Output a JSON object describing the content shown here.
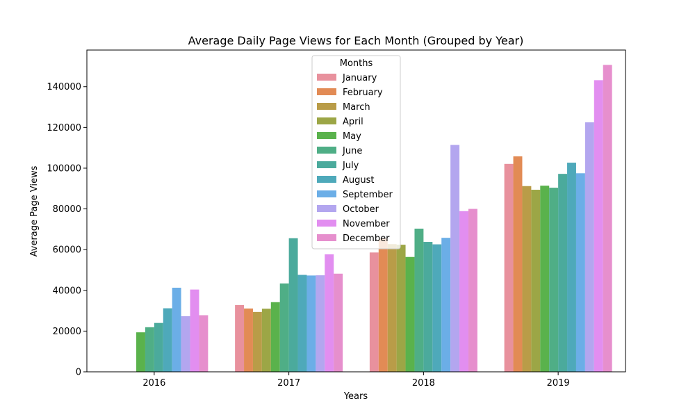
{
  "chart_data": {
    "type": "bar",
    "title": "Average Daily Page Views for Each Month (Grouped by Year)",
    "xlabel": "Years",
    "ylabel": "Average Page Views",
    "categories": [
      "2016",
      "2017",
      "2018",
      "2019"
    ],
    "ylim": [
      0,
      158000
    ],
    "yticks": [
      0,
      20000,
      40000,
      60000,
      80000,
      100000,
      120000,
      140000
    ],
    "ytick_labels": [
      "0",
      "20000",
      "40000",
      "60000",
      "80000",
      "100000",
      "120000",
      "140000"
    ],
    "legend": {
      "title": "Months",
      "position": "top-center"
    },
    "grid": false,
    "series": [
      {
        "name": "January",
        "color": "#e8919d",
        "values": [
          null,
          32800,
          58600,
          102100
        ]
      },
      {
        "name": "February",
        "color": "#e28b55",
        "values": [
          null,
          31100,
          65400,
          105800
        ]
      },
      {
        "name": "March",
        "color": "#b99c48",
        "values": [
          null,
          29400,
          62700,
          91200
        ]
      },
      {
        "name": "April",
        "color": "#9ca646",
        "values": [
          null,
          31000,
          62400,
          89400
        ]
      },
      {
        "name": "May",
        "color": "#5ab24c",
        "values": [
          19400,
          34200,
          56400,
          91400
        ]
      },
      {
        "name": "June",
        "color": "#4fae86",
        "values": [
          21900,
          43400,
          70300,
          90400
        ]
      },
      {
        "name": "July",
        "color": "#4baa9c",
        "values": [
          24000,
          65600,
          63800,
          97200
        ]
      },
      {
        "name": "August",
        "color": "#4ea9ba",
        "values": [
          31200,
          47600,
          62600,
          102700
        ]
      },
      {
        "name": "September",
        "color": "#6baee7",
        "values": [
          41300,
          47300,
          65800,
          97500
        ]
      },
      {
        "name": "October",
        "color": "#b3a6ef",
        "values": [
          27300,
          47400,
          111400,
          122500
        ]
      },
      {
        "name": "November",
        "color": "#e28ef0",
        "values": [
          40400,
          57700,
          78900,
          143200
        ]
      },
      {
        "name": "December",
        "color": "#e68fcd",
        "values": [
          27800,
          48200,
          80000,
          150700
        ]
      }
    ]
  }
}
